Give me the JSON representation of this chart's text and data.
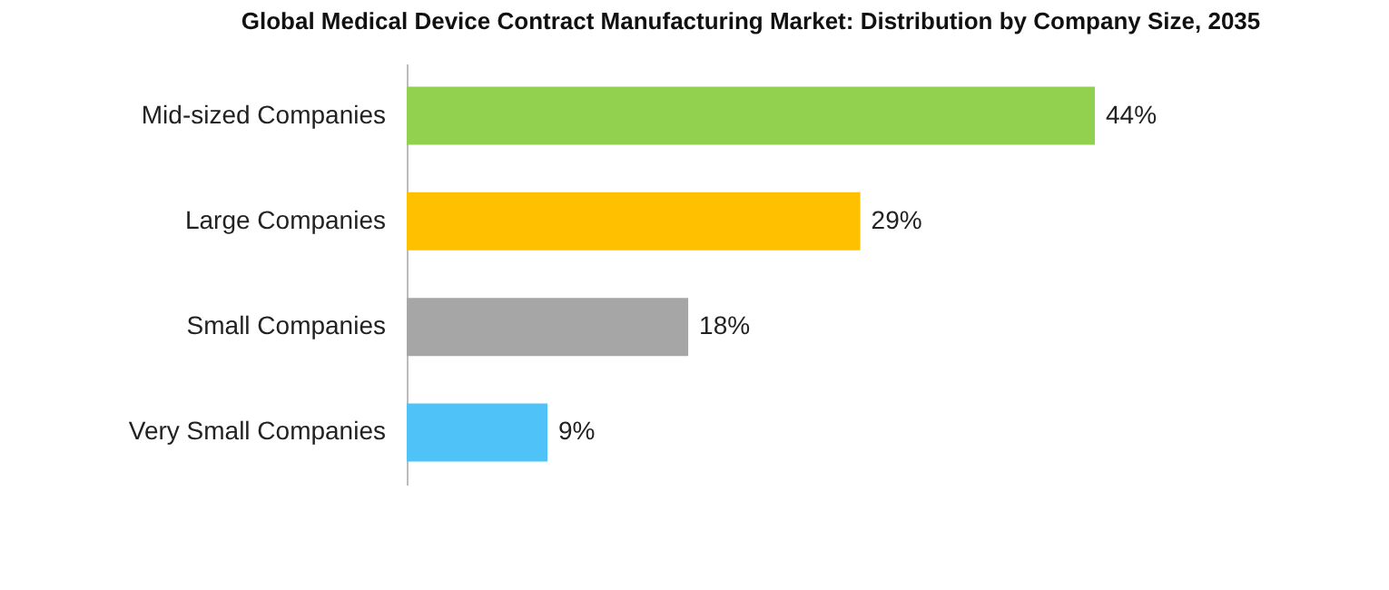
{
  "chart_data": {
    "type": "bar",
    "orientation": "horizontal",
    "title": "Global Medical Device Contract Manufacturing Market: Distribution by Company Size, 2035",
    "categories": [
      "Mid-sized Companies",
      "Large Companies",
      "Small Companies",
      "Very Small Companies"
    ],
    "values": [
      44,
      29,
      18,
      9
    ],
    "colors": [
      "#92d050",
      "#ffc000",
      "#a6a6a6",
      "#4fc3f7"
    ],
    "value_labels": [
      "44%",
      "29%",
      "18%",
      "9%"
    ]
  }
}
